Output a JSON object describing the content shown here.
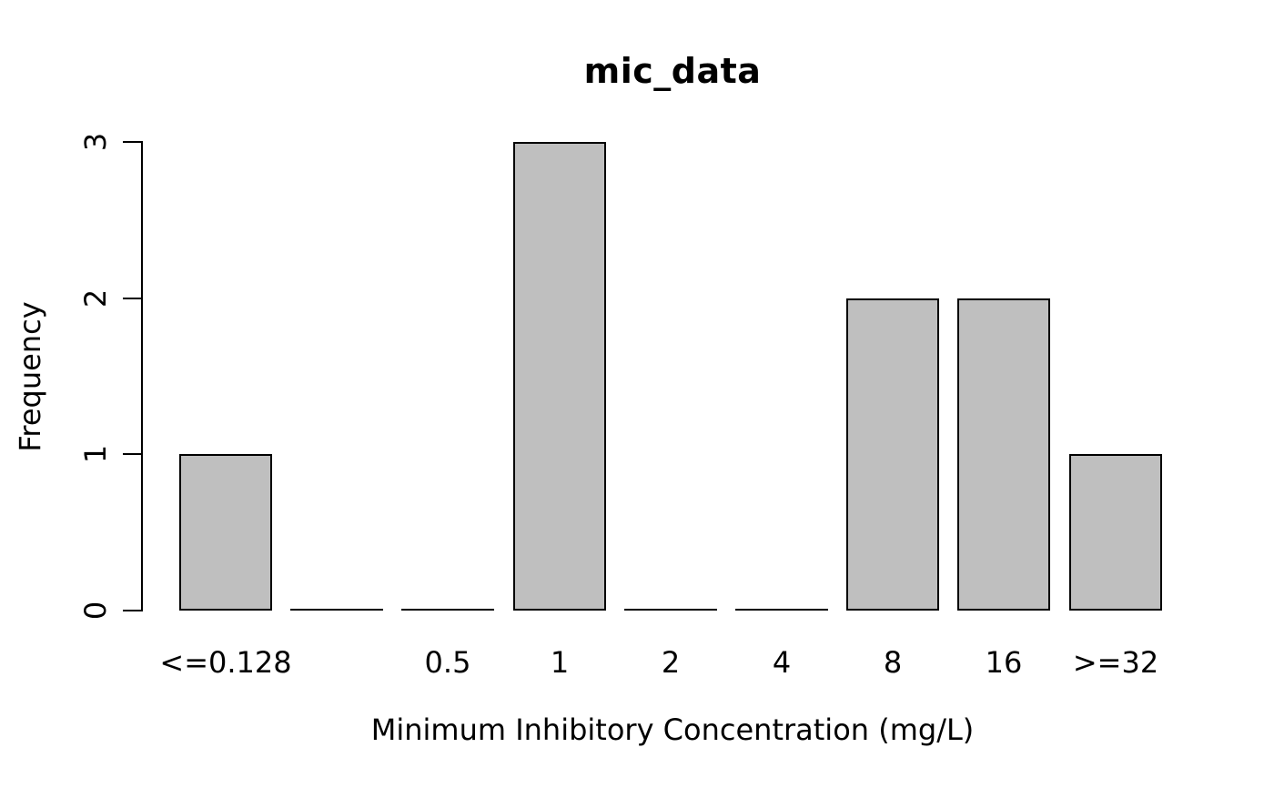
{
  "chart_data": {
    "type": "bar",
    "title": "mic_data",
    "xlabel": "Minimum Inhibitory Concentration (mg/L)",
    "ylabel": "Frequency",
    "categories": [
      "<=0.128",
      "",
      "0.5",
      "1",
      "2",
      "4",
      "8",
      "16",
      ">=32"
    ],
    "values": [
      1,
      0,
      0,
      3,
      0,
      0,
      2,
      2,
      1
    ],
    "yticks": [
      0,
      1,
      2,
      3
    ],
    "ylim": [
      0,
      3
    ],
    "grid": false,
    "legend_position": "none",
    "bar_fill": "#bfbfbf",
    "bar_border": "#000000",
    "axis_color": "#000000",
    "text_color": "#000000",
    "background": "#ffffff"
  }
}
